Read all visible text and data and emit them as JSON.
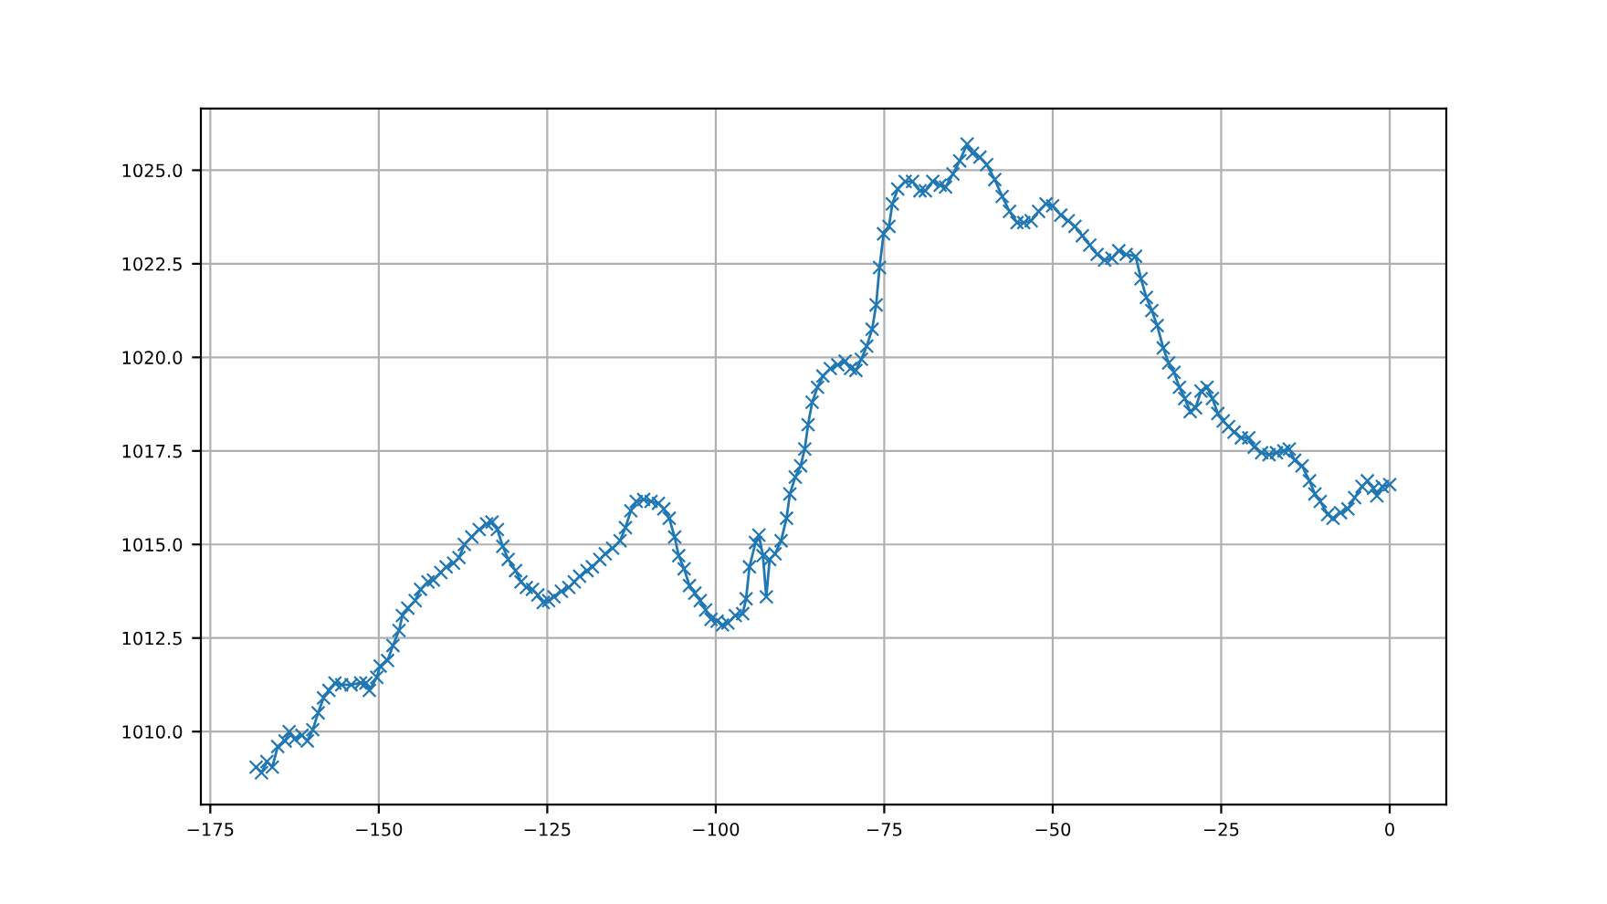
{
  "chart_data": {
    "type": "line",
    "marker": "cross",
    "grid": true,
    "xlim": [
      -176.4,
      8.4
    ],
    "ylim": [
      1008.05,
      1026.65
    ],
    "xticks": [
      {
        "value": -175,
        "label": "−175"
      },
      {
        "value": -150,
        "label": "−150"
      },
      {
        "value": -125,
        "label": "−125"
      },
      {
        "value": -100,
        "label": "−100"
      },
      {
        "value": -75,
        "label": "−75"
      },
      {
        "value": -50,
        "label": "−50"
      },
      {
        "value": -25,
        "label": "−25"
      },
      0
    ],
    "yticks": [
      {
        "value": 1010,
        "label": "1010.0"
      },
      {
        "value": 1012.5,
        "label": "1012.5"
      },
      {
        "value": 1015,
        "label": "1015.0"
      },
      {
        "value": 1017.5,
        "label": "1017.5"
      },
      {
        "value": 1020,
        "label": "1020.0"
      },
      {
        "value": 1022.5,
        "label": "1022.5"
      },
      {
        "value": 1025,
        "label": "1025.0"
      }
    ],
    "series": [
      {
        "color": "#1f77b4",
        "x": [
          -168.2,
          -167.4,
          -166.6,
          -165.8,
          -165,
          -163.9,
          -163.3,
          -162.5,
          -161.4,
          -160.6,
          -159.8,
          -159,
          -158.2,
          -157.4,
          -156.5,
          -155.5,
          -154.1,
          -152.7,
          -151.9,
          -151.4,
          -150.3,
          -149.8,
          -148.7,
          -147.9,
          -147,
          -146.5,
          -145.7,
          -144.6,
          -143.8,
          -142.7,
          -141.9,
          -140.8,
          -140,
          -138.9,
          -138.1,
          -137.3,
          -136.2,
          -135.1,
          -134,
          -133.2,
          -132.4,
          -131.6,
          -130.8,
          -129.7,
          -128.9,
          -128.1,
          -127.2,
          -126.4,
          -125.6,
          -124.8,
          -124,
          -122.9,
          -121.8,
          -121,
          -120.2,
          -119.1,
          -118.3,
          -117.2,
          -116.4,
          -115.3,
          -114.2,
          -113.4,
          -112.6,
          -111.8,
          -110.7,
          -109.6,
          -108.5,
          -107.7,
          -106.9,
          -106.1,
          -105.5,
          -104.7,
          -103.9,
          -103.1,
          -102.3,
          -101.5,
          -100.7,
          -99.8,
          -99,
          -98.2,
          -97.1,
          -96,
          -95.5,
          -95,
          -94.1,
          -93.6,
          -93,
          -92.5,
          -92,
          -91.2,
          -90.3,
          -89.5,
          -89,
          -88.2,
          -87.4,
          -86.8,
          -86.3,
          -85.7,
          -84.9,
          -84.1,
          -83,
          -81.9,
          -80.8,
          -80,
          -79.2,
          -78.4,
          -77.6,
          -76.8,
          -76.2,
          -75.7,
          -75.1,
          -74.3,
          -73.8,
          -73,
          -71.9,
          -70.8,
          -69.7,
          -68.9,
          -67.8,
          -66.7,
          -65.9,
          -64.8,
          -63.8,
          -62.7,
          -61.9,
          -60.8,
          -59.8,
          -58.6,
          -57.5,
          -56.4,
          -55.3,
          -54.3,
          -53.2,
          -52.1,
          -51,
          -50,
          -48.8,
          -47.7,
          -46.7,
          -45.6,
          -44.5,
          -43.4,
          -42.3,
          -41.2,
          -40.2,
          -39.1,
          -37.7,
          -36.9,
          -36.1,
          -35.3,
          -34.5,
          -33.6,
          -32.8,
          -32,
          -31.2,
          -30.4,
          -29.6,
          -28.8,
          -28,
          -27.1,
          -26.3,
          -25.5,
          -24.7,
          -23.9,
          -23.1,
          -22,
          -20.9,
          -20.1,
          -19,
          -17.9,
          -16.8,
          -15.7,
          -14.9,
          -14.1,
          -13,
          -11.9,
          -11.1,
          -10.3,
          -9.2,
          -8.4,
          -7.3,
          -6.2,
          -5.2,
          -4.1,
          -3.3,
          -2.4,
          -1.9,
          -1.1,
          0
        ],
        "values": [
          1009.05,
          1008.9,
          1009.2,
          1009.05,
          1009.6,
          1009.75,
          1010.0,
          1009.8,
          1009.9,
          1009.75,
          1010.05,
          1010.5,
          1010.9,
          1011.1,
          1011.3,
          1011.25,
          1011.25,
          1011.3,
          1011.3,
          1011.1,
          1011.45,
          1011.75,
          1011.9,
          1012.3,
          1012.7,
          1013.1,
          1013.3,
          1013.5,
          1013.8,
          1014.0,
          1014.05,
          1014.25,
          1014.4,
          1014.5,
          1014.65,
          1015.0,
          1015.2,
          1015.4,
          1015.55,
          1015.6,
          1015.4,
          1014.95,
          1014.6,
          1014.3,
          1014.0,
          1013.85,
          1013.8,
          1013.65,
          1013.45,
          1013.5,
          1013.6,
          1013.75,
          1013.85,
          1014.0,
          1014.15,
          1014.3,
          1014.4,
          1014.6,
          1014.75,
          1014.9,
          1015.1,
          1015.45,
          1015.9,
          1016.15,
          1016.2,
          1016.15,
          1016.1,
          1015.95,
          1015.7,
          1015.2,
          1014.7,
          1014.35,
          1013.9,
          1013.7,
          1013.5,
          1013.25,
          1013.0,
          1012.95,
          1012.85,
          1012.9,
          1013.1,
          1013.15,
          1013.55,
          1014.4,
          1015.05,
          1015.25,
          1014.7,
          1013.6,
          1014.6,
          1014.75,
          1015.1,
          1015.7,
          1016.35,
          1016.8,
          1017.1,
          1017.55,
          1018.2,
          1018.8,
          1019.2,
          1019.5,
          1019.7,
          1019.8,
          1019.9,
          1019.7,
          1019.65,
          1019.95,
          1020.3,
          1020.75,
          1021.4,
          1022.4,
          1023.3,
          1023.5,
          1024.1,
          1024.5,
          1024.7,
          1024.7,
          1024.45,
          1024.45,
          1024.7,
          1024.6,
          1024.55,
          1024.9,
          1025.25,
          1025.7,
          1025.45,
          1025.35,
          1025.15,
          1024.75,
          1024.3,
          1023.9,
          1023.6,
          1023.6,
          1023.65,
          1023.9,
          1024.1,
          1024.05,
          1023.8,
          1023.65,
          1023.5,
          1023.25,
          1023.0,
          1022.75,
          1022.6,
          1022.65,
          1022.85,
          1022.75,
          1022.7,
          1022.1,
          1021.6,
          1021.25,
          1020.85,
          1020.25,
          1019.85,
          1019.6,
          1019.2,
          1018.9,
          1018.55,
          1018.65,
          1019.1,
          1019.2,
          1018.9,
          1018.5,
          1018.3,
          1018.15,
          1018.0,
          1017.85,
          1017.85,
          1017.6,
          1017.45,
          1017.4,
          1017.45,
          1017.5,
          1017.55,
          1017.25,
          1017.1,
          1016.7,
          1016.35,
          1016.15,
          1015.8,
          1015.7,
          1015.85,
          1015.95,
          1016.25,
          1016.55,
          1016.7,
          1016.5,
          1016.3,
          1016.55,
          1016.6
        ]
      }
    ]
  }
}
